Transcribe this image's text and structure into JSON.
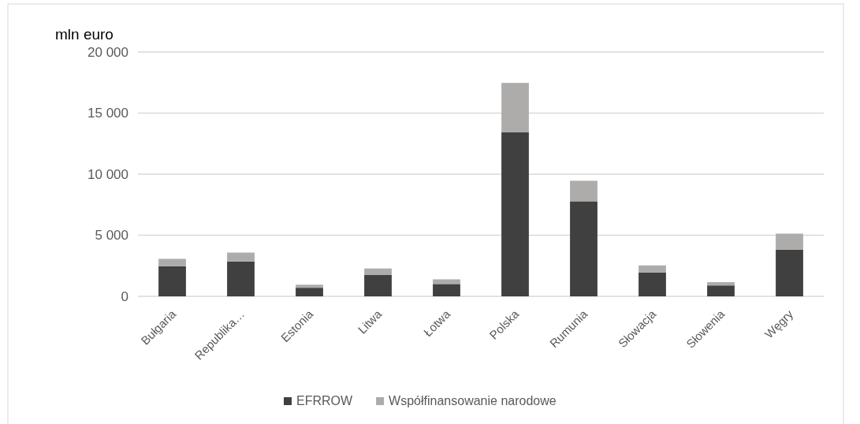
{
  "chart_data": {
    "type": "bar",
    "stacked": true,
    "ylabel": "mln euro",
    "categories": [
      "Bułgaria",
      "Republika…",
      "Estonia",
      "Litwa",
      "Łotwa",
      "Polska",
      "Rumunia",
      "Słowacja",
      "Słowenia",
      "Węgry"
    ],
    "series": [
      {
        "name": "EFRROW",
        "color": "#404040",
        "values": [
          2470,
          2850,
          700,
          1770,
          1010,
          13420,
          7780,
          1960,
          890,
          3830
        ]
      },
      {
        "name": "Współfinansowanie narodowe",
        "color": "#aeabab",
        "values": [
          600,
          730,
          250,
          510,
          380,
          4050,
          1680,
          570,
          270,
          1300
        ]
      }
    ],
    "ylim": [
      0,
      20000
    ],
    "yticks": [
      {
        "value": 0,
        "label": "0"
      },
      {
        "value": 5000,
        "label": "5 000"
      },
      {
        "value": 10000,
        "label": "10 000"
      },
      {
        "value": 15000,
        "label": "15 000"
      },
      {
        "value": 20000,
        "label": "20 000"
      }
    ],
    "grid": "y",
    "legend": "bottom"
  }
}
